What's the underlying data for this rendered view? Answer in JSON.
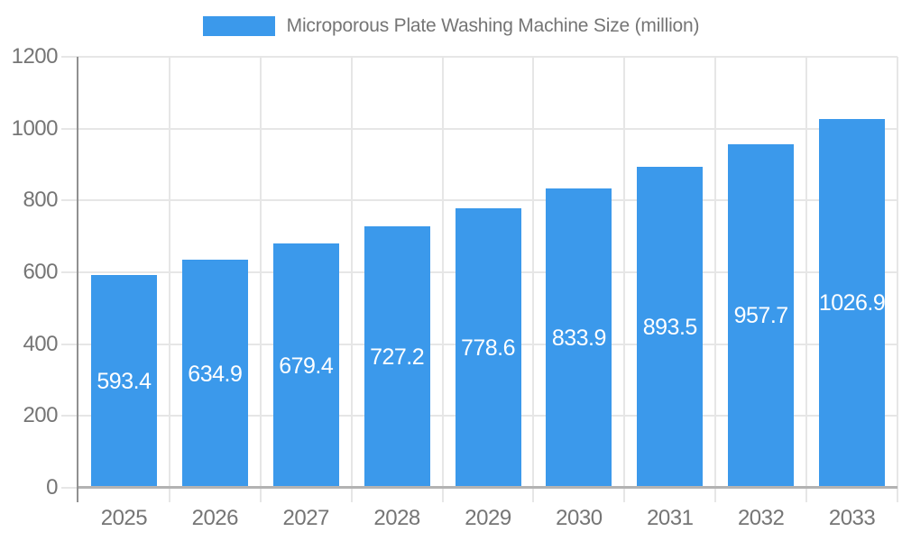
{
  "legend": {
    "series_label": "Microporous Plate Washing Machine Size (million)"
  },
  "colors": {
    "bar": "#3B99EB",
    "bar_label_text": "#FFFFFF",
    "axis_text": "#757575",
    "grid_line": "#E6E6E6",
    "x_axis_line": "#B3B3B3",
    "y_axis_line": "#909090"
  },
  "chart_data": {
    "type": "bar",
    "title": "Microporous Plate Washing Machine Size (million)",
    "categories": [
      "2025",
      "2026",
      "2027",
      "2028",
      "2029",
      "2030",
      "2031",
      "2032",
      "2033"
    ],
    "values": [
      593.4,
      634.9,
      679.4,
      727.2,
      778.6,
      833.9,
      893.5,
      957.7,
      1026.9
    ],
    "data_labels": [
      "593.4",
      "634.9",
      "679.4",
      "727.2",
      "778.6",
      "833.9",
      "893.5",
      "957.7",
      "1026.9"
    ],
    "xlabel": "",
    "ylabel": "",
    "ylim": [
      0,
      1200
    ],
    "yticks": [
      0,
      200,
      400,
      600,
      800,
      1000,
      1200
    ],
    "ytick_labels": [
      "0",
      "200",
      "400",
      "600",
      "800",
      "1000",
      "1200"
    ],
    "grid": "on",
    "legend_position": "top",
    "data_label_position": "inside-center"
  }
}
